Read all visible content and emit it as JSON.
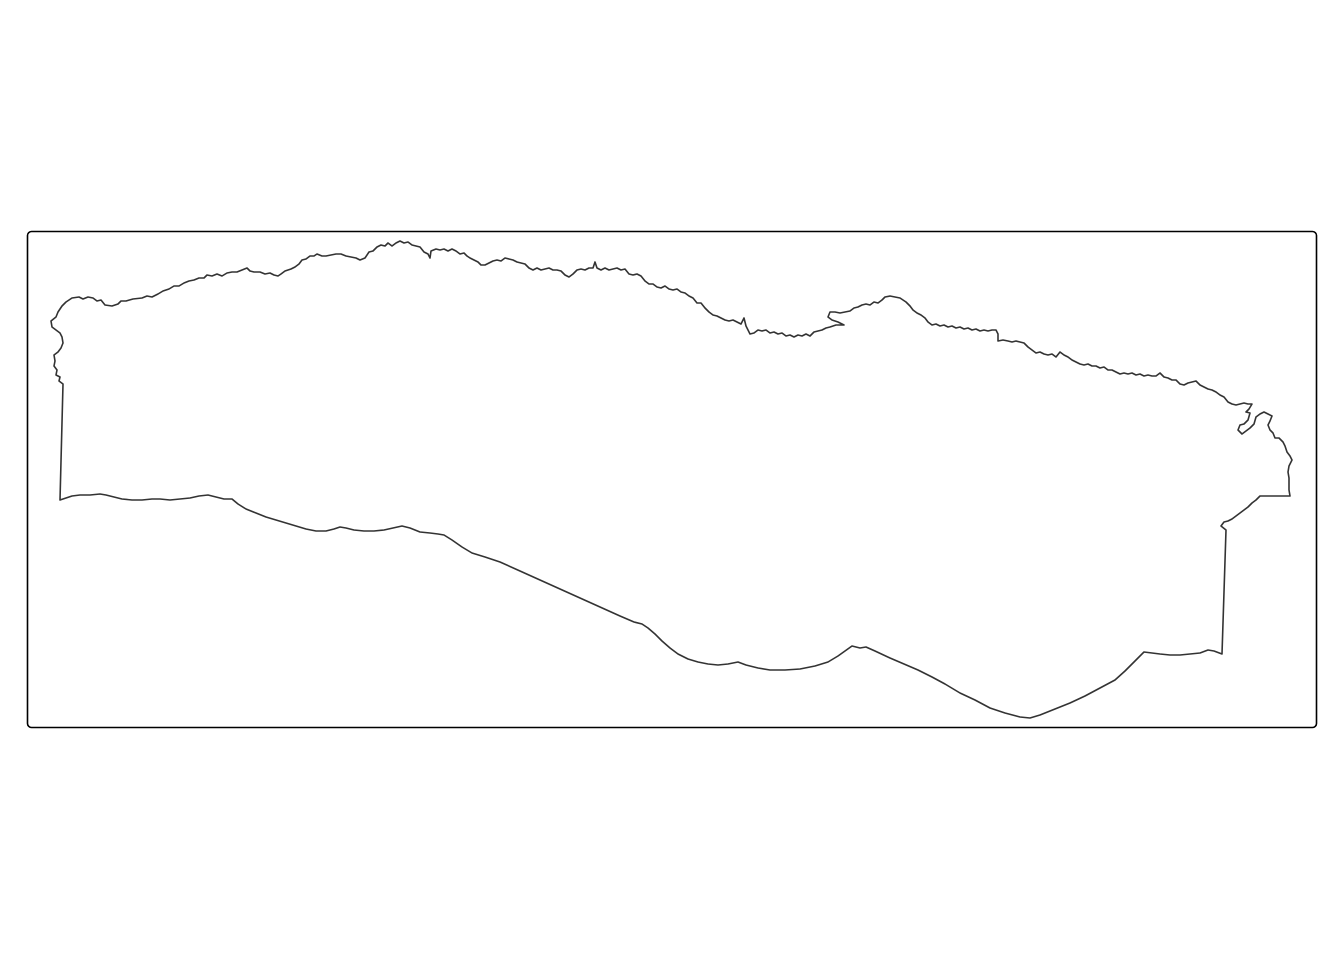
{
  "map": {
    "frame_color": "#000000",
    "outline_color": "#333333",
    "fill_color": "#ffffff",
    "background_color": "#ffffff",
    "feature_count": 1
  }
}
